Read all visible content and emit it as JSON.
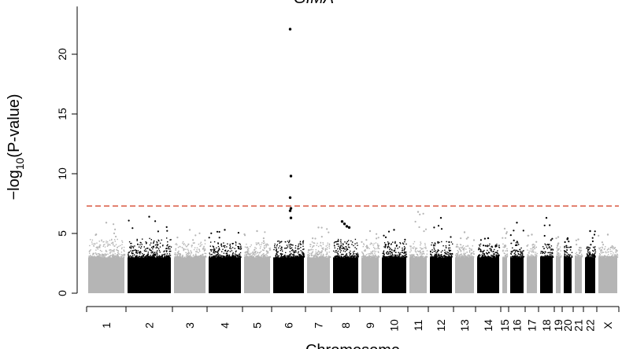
{
  "chart_data": {
    "type": "scatter",
    "subtype": "manhattan",
    "title": "",
    "xlabel": "Chromosome",
    "ylabel_main": "−log",
    "ylabel_sub": "10",
    "ylabel_tail": "(P-value)",
    "ylim": [
      0,
      24
    ],
    "yticks": [
      0,
      5,
      10,
      15,
      20
    ],
    "threshold": 7.3,
    "threshold_color": "#cc2200",
    "colors": {
      "odd": "#b5b5b5",
      "even": "#000000"
    },
    "annotation": {
      "label": "GIMA",
      "chromosome": "6"
    },
    "grid": false,
    "legend": "none",
    "chromosomes": [
      {
        "name": "1",
        "max": 5.9,
        "dense": 4.2
      },
      {
        "name": "2",
        "max": 6.4,
        "dense": 4.3
      },
      {
        "name": "3",
        "max": 5.3,
        "dense": 4.0
      },
      {
        "name": "4",
        "max": 5.3,
        "dense": 4.0
      },
      {
        "name": "5",
        "max": 5.2,
        "dense": 3.9
      },
      {
        "name": "6",
        "max": 22.1,
        "dense": 4.1,
        "hits": [
          22.1,
          9.8,
          8.0,
          7.1,
          6.9,
          6.3
        ]
      },
      {
        "name": "7",
        "max": 5.5,
        "dense": 4.0
      },
      {
        "name": "8",
        "max": 6.3,
        "dense": 4.2,
        "hits": [
          6.0,
          5.8,
          5.6,
          5.5
        ]
      },
      {
        "name": "9",
        "max": 5.2,
        "dense": 3.9
      },
      {
        "name": "10",
        "max": 5.3,
        "dense": 4.0
      },
      {
        "name": "11",
        "max": 6.8,
        "dense": 4.0
      },
      {
        "name": "12",
        "max": 6.3,
        "dense": 4.0
      },
      {
        "name": "13",
        "max": 5.1,
        "dense": 3.8
      },
      {
        "name": "14",
        "max": 4.6,
        "dense": 3.8
      },
      {
        "name": "15",
        "max": 5.4,
        "dense": 3.8
      },
      {
        "name": "16",
        "max": 5.9,
        "dense": 3.9
      },
      {
        "name": "17",
        "max": 4.9,
        "dense": 3.8
      },
      {
        "name": "18",
        "max": 6.3,
        "dense": 3.8
      },
      {
        "name": "19",
        "max": 4.7,
        "dense": 3.6
      },
      {
        "name": "20",
        "max": 4.6,
        "dense": 3.6
      },
      {
        "name": "21",
        "max": 4.5,
        "dense": 3.5
      },
      {
        "name": "22",
        "max": 5.2,
        "dense": 3.6
      },
      {
        "name": "X",
        "max": 4.9,
        "dense": 3.6
      }
    ]
  }
}
